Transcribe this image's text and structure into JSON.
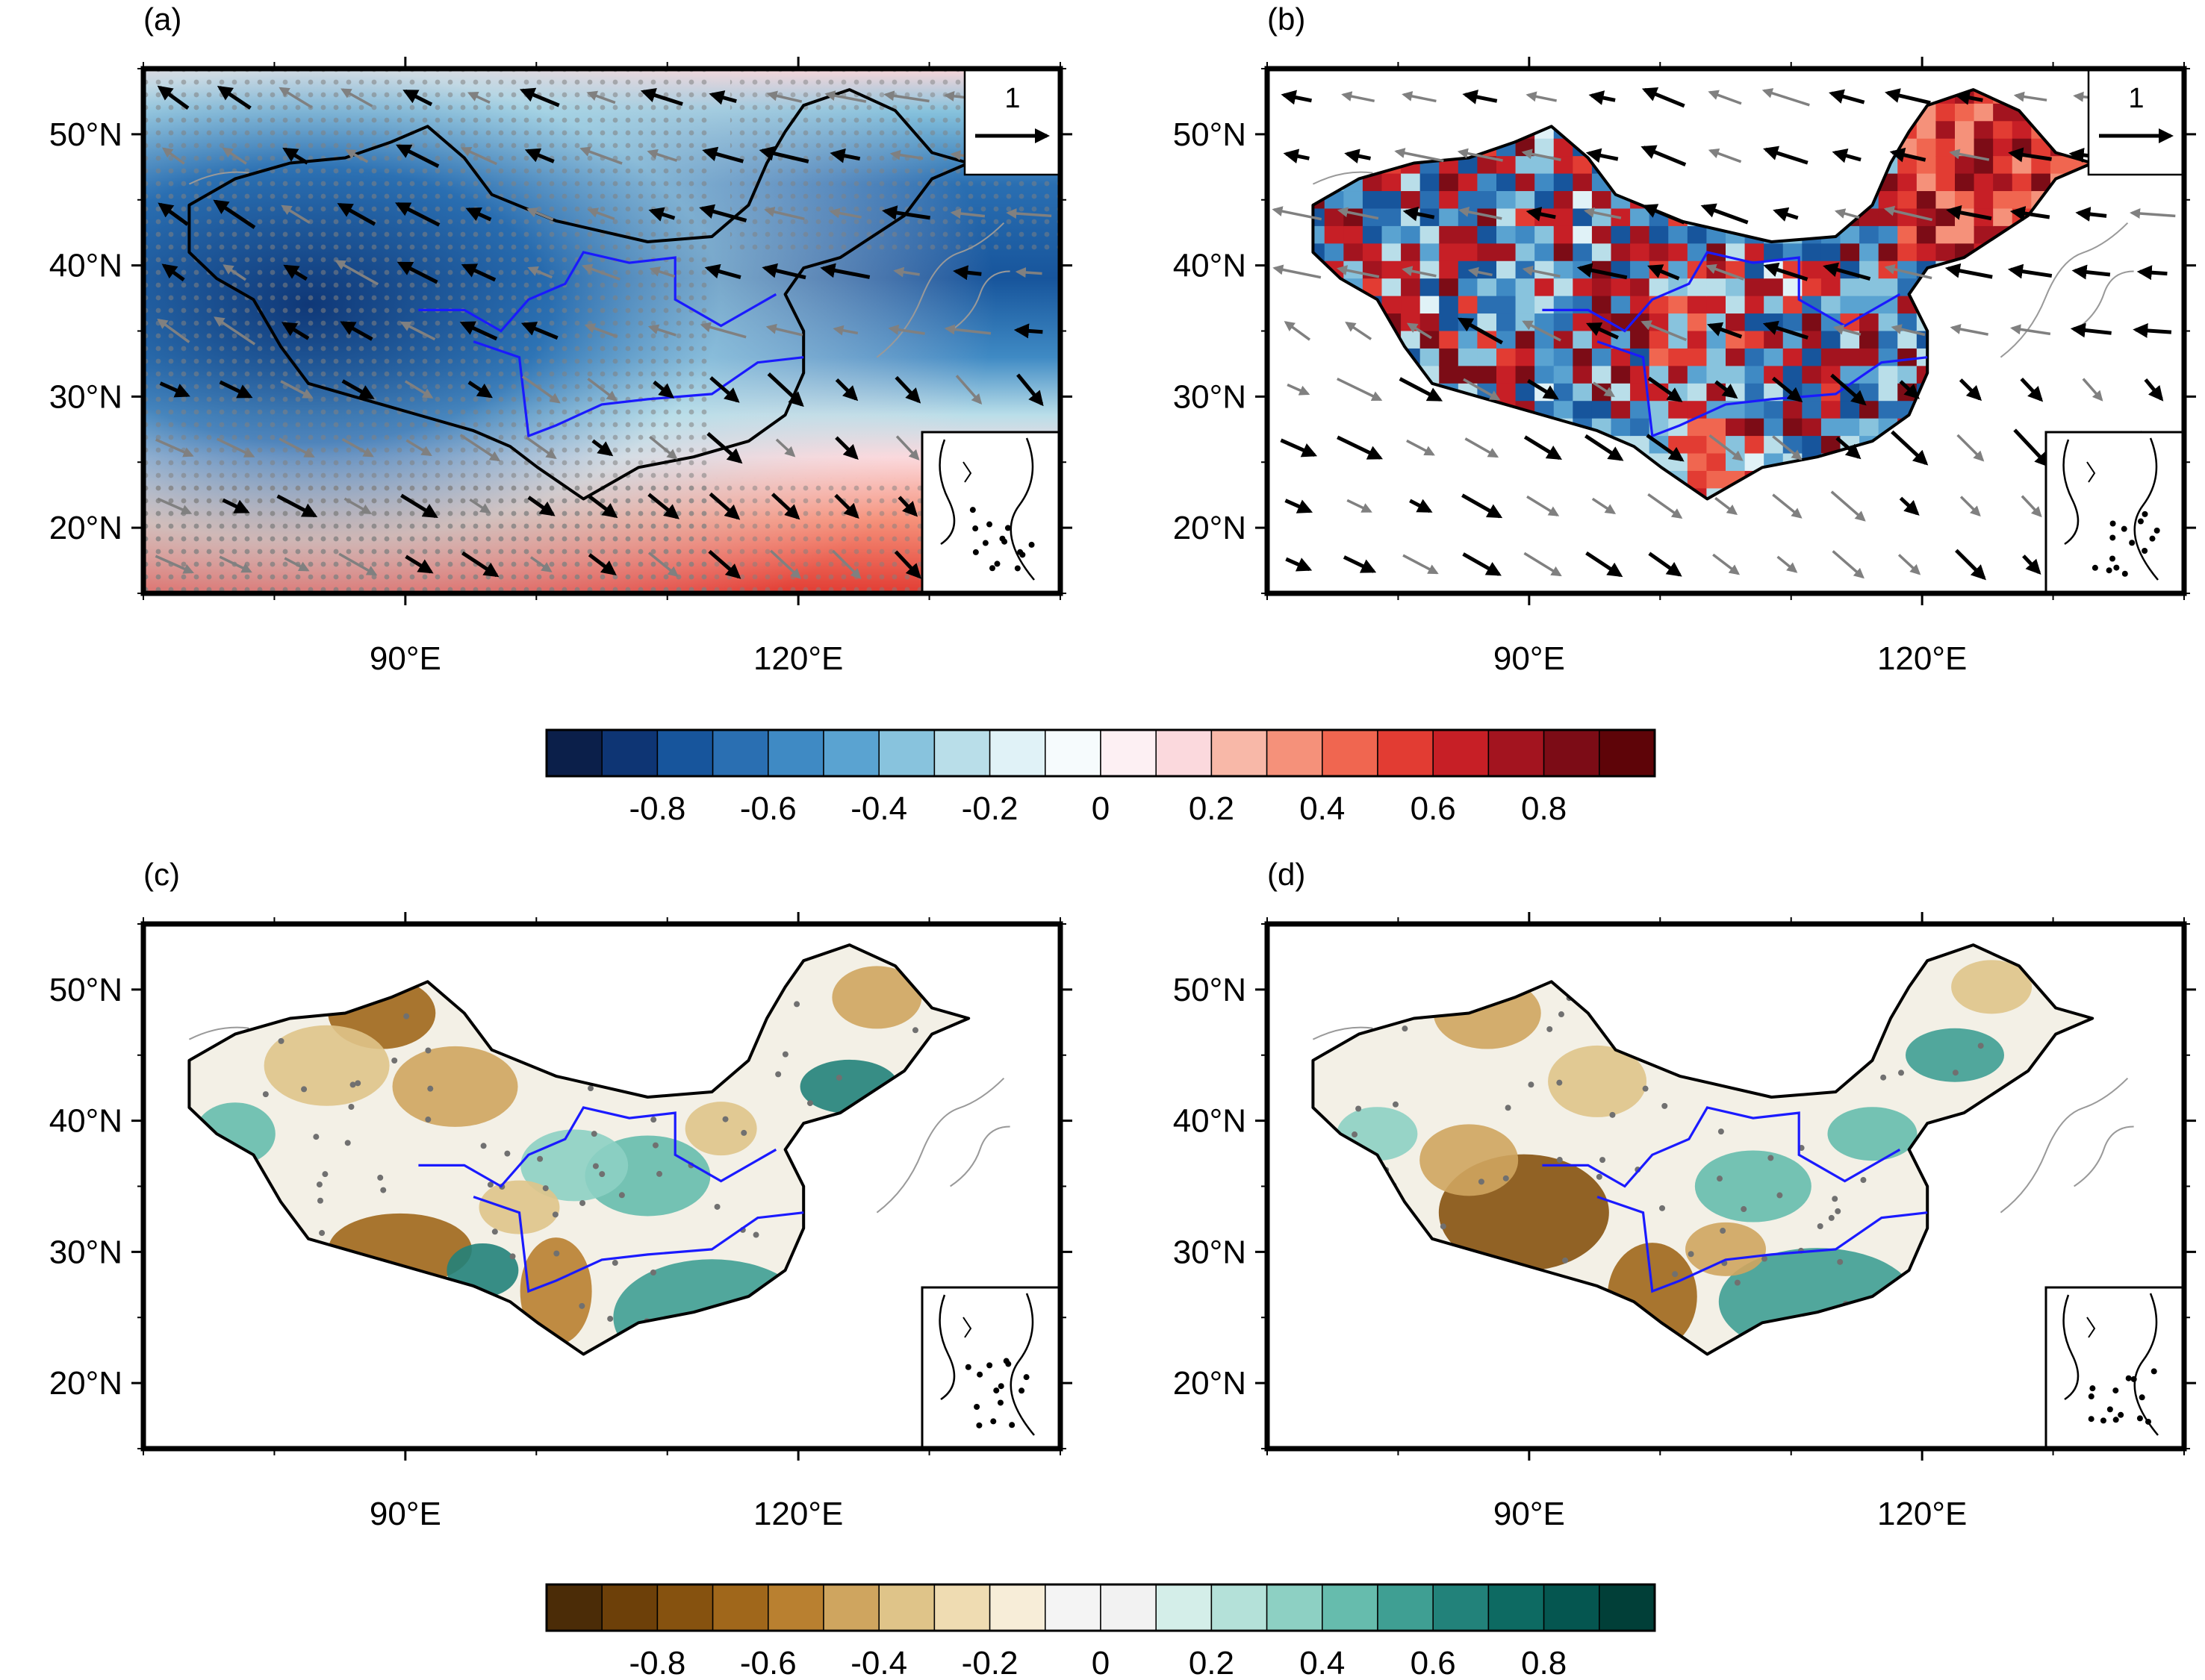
{
  "panels": [
    {
      "label": "(a)",
      "kind": "correlation-wind",
      "vector_ref": "1"
    },
    {
      "label": "(b)",
      "kind": "correlation-wind",
      "vector_ref": "1"
    },
    {
      "label": "(c)",
      "kind": "precip-correlation"
    },
    {
      "label": "(d)",
      "kind": "precip-correlation"
    }
  ],
  "axes": {
    "lat_ticks": [
      "20°N",
      "30°N",
      "40°N",
      "50°N"
    ],
    "lon_ticks": [
      "90°E",
      "120°E"
    ],
    "lat_range": [
      15,
      55
    ],
    "lon_range": [
      70,
      140
    ]
  },
  "colorbars": [
    {
      "name": "blue-red",
      "tick_labels": [
        "-0.8",
        "-0.6",
        "-0.4",
        "-0.2",
        "0",
        "0.2",
        "0.4",
        "0.6",
        "0.8"
      ],
      "colors": [
        "#0b1f4a",
        "#0e3574",
        "#17559c",
        "#2a6fb2",
        "#3f8ac4",
        "#5aa3d1",
        "#88c3dd",
        "#b9dee9",
        "#e0f2f7",
        "#f6fbfd",
        "#fdf0f3",
        "#fbd9dd",
        "#f8b8a8",
        "#f5917a",
        "#f06650",
        "#e23c33",
        "#c71f26",
        "#a3141f",
        "#7c0c16",
        "#5e0408"
      ]
    },
    {
      "name": "brown-teal",
      "tick_labels": [
        "-0.8",
        "-0.6",
        "-0.4",
        "-0.2",
        "0",
        "0.2",
        "0.4",
        "0.6",
        "0.8"
      ],
      "colors": [
        "#4b2c07",
        "#6d4009",
        "#86520f",
        "#a0671b",
        "#b98030",
        "#cfa55f",
        "#dfc489",
        "#efdcb2",
        "#f7edd8",
        "#f4f4f4",
        "#f2f2f2",
        "#d4eee9",
        "#b4e1d9",
        "#8dd0c3",
        "#66bcad",
        "#3f9f93",
        "#22827a",
        "#0d6a62",
        "#055650",
        "#013f38"
      ]
    }
  ]
}
